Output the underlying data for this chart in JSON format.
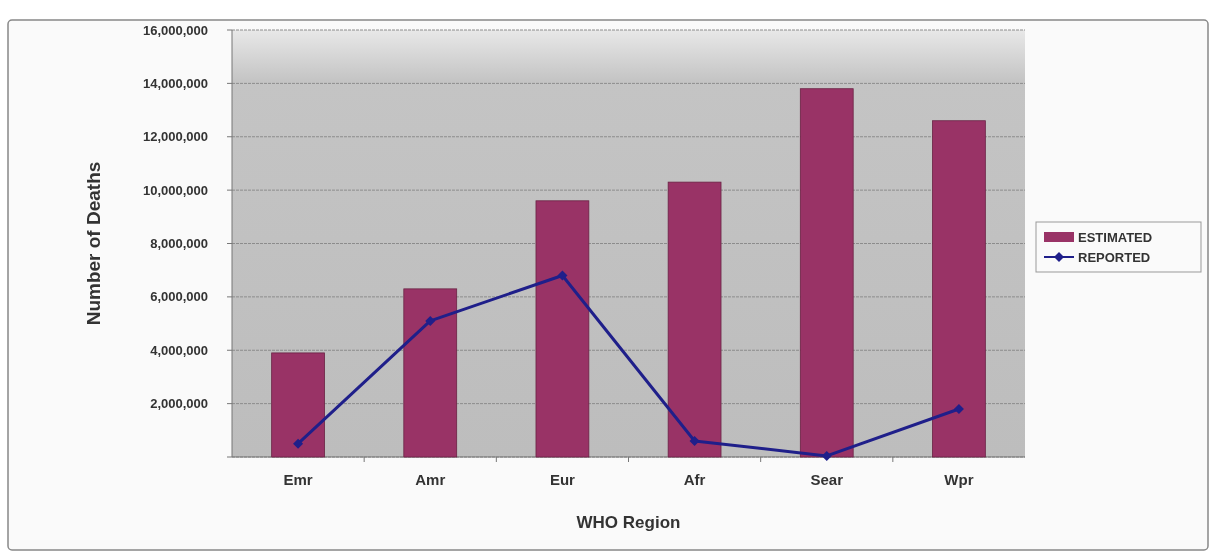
{
  "chart_data": {
    "type": "bar",
    "xlabel": "WHO Region",
    "ylabel": "Number of Deaths",
    "categories": [
      "Emr",
      "Amr",
      "Eur",
      "Afr",
      "Sear",
      "Wpr"
    ],
    "series": [
      {
        "name": "ESTIMATED",
        "color": "#993366",
        "values": [
          3900000,
          6300000,
          9600000,
          10300000,
          13800000,
          12600000
        ]
      },
      {
        "name": "REPORTED",
        "type": "line",
        "color": "#1f1f8a",
        "marker": "diamond",
        "values": [
          500000,
          5100000,
          6800000,
          600000,
          40000,
          1800000
        ]
      }
    ],
    "ylim": [
      0,
      16000000
    ],
    "yticks": [
      {
        "value": 0,
        "label": null
      },
      {
        "value": 2000000,
        "label": "2,000,000"
      },
      {
        "value": 4000000,
        "label": "4,000,000"
      },
      {
        "value": 6000000,
        "label": "6,000,000"
      },
      {
        "value": 8000000,
        "label": "8,000,000"
      },
      {
        "value": 10000000,
        "label": "10,000,000"
      },
      {
        "value": 12000000,
        "label": "12,000,000"
      },
      {
        "value": 14000000,
        "label": "14,000,000"
      },
      {
        "value": 16000000,
        "label": "16,000,000"
      }
    ],
    "grid": "y",
    "legend": "right"
  }
}
